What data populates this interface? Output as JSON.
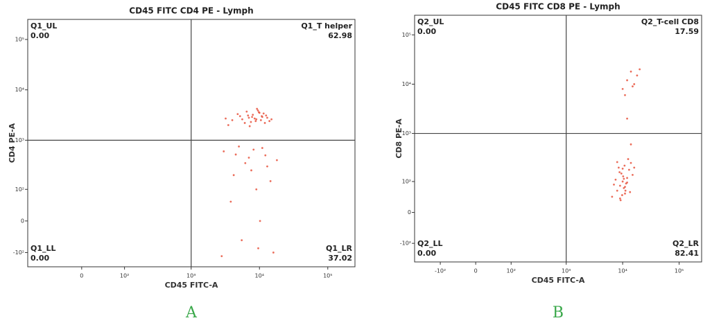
{
  "chart_data": [
    {
      "type": "scatter",
      "title": "CD45 FITC CD4 PE - Lymph",
      "caption": "A",
      "xlabel": "CD45 FITC-A",
      "ylabel": "CD4 PE-A",
      "xscale": "biexponential",
      "yscale": "biexponential",
      "xlim": [
        -150,
        250000
      ],
      "ylim": [
        -200,
        250000
      ],
      "xticks": [
        {
          "value": 0,
          "label": "0"
        },
        {
          "value": 100,
          "label": "10²"
        },
        {
          "value": 1000,
          "label": "10³"
        },
        {
          "value": 10000,
          "label": "10⁴"
        },
        {
          "value": 100000,
          "label": "10⁵"
        }
      ],
      "yticks": [
        {
          "value": -100,
          "label": "-10²"
        },
        {
          "value": 0,
          "label": "0"
        },
        {
          "value": 100,
          "label": "10²"
        },
        {
          "value": 1000,
          "label": "10³"
        },
        {
          "value": 10000,
          "label": "10⁴"
        },
        {
          "value": 100000,
          "label": "10⁵"
        }
      ],
      "gate": {
        "x": 1000,
        "y": 1000
      },
      "quadrants": [
        {
          "name": "Q1_UL",
          "value": "0.00"
        },
        {
          "name": "Q1_T helper",
          "value": "62.98"
        },
        {
          "name": "Q1_LL",
          "value": "0.00"
        },
        {
          "name": "Q1_LR",
          "value": "37.02"
        }
      ],
      "color": "#e8553f",
      "x": [
        4000,
        5200,
        6100,
        7000,
        8000,
        9000,
        10000,
        11000,
        12500,
        14000,
        3500,
        4800,
        6500,
        7500,
        8500,
        9500,
        10500,
        11500,
        13000,
        5600,
        6800,
        7800,
        8800,
        9800,
        10800,
        3200,
        15000,
        12000,
        9200,
        7200,
        3000,
        4200,
        5500,
        7000,
        9000,
        11000,
        13000,
        16000,
        3800,
        6200,
        8200,
        10200,
        12200,
        14500,
        2800,
        5000,
        7600,
        9600,
        18000,
        4500
      ],
      "values": [
        2500,
        3000,
        2200,
        2800,
        3200,
        2600,
        3500,
        2900,
        3100,
        2400,
        2000,
        3300,
        3700,
        2300,
        2700,
        3900,
        2500,
        3400,
        2800,
        2600,
        3100,
        2900,
        2400,
        3600,
        3000,
        2700,
        2600,
        2200,
        4200,
        1900,
        600,
        200,
        -50,
        450,
        100,
        700,
        300,
        -100,
        50,
        350,
        650,
        0,
        500,
        150,
        -120,
        750,
        250,
        -80,
        400,
        520
      ]
    },
    {
      "type": "scatter",
      "title": "CD45 FITC CD8 PE - Lymph",
      "caption": "B",
      "xlabel": "CD45 FITC-A",
      "ylabel": "CD8 PE-A",
      "xscale": "biexponential",
      "yscale": "biexponential",
      "xlim": [
        -300,
        250000
      ],
      "ylim": [
        -250,
        250000
      ],
      "xticks": [
        {
          "value": -100,
          "label": "-10²"
        },
        {
          "value": 0,
          "label": "0"
        },
        {
          "value": 100,
          "label": "10²"
        },
        {
          "value": 1000,
          "label": "10³"
        },
        {
          "value": 10000,
          "label": "10⁴"
        },
        {
          "value": 100000,
          "label": "10⁵"
        }
      ],
      "yticks": [
        {
          "value": -100,
          "label": "-10²"
        },
        {
          "value": 0,
          "label": "0"
        },
        {
          "value": 100,
          "label": "10²"
        },
        {
          "value": 1000,
          "label": "10³"
        },
        {
          "value": 10000,
          "label": "10⁴"
        },
        {
          "value": 100000,
          "label": "10⁵"
        }
      ],
      "gate": {
        "x": 1000,
        "y": 1000
      },
      "quadrants": [
        {
          "name": "Q2_UL",
          "value": "0.00"
        },
        {
          "name": "Q2_T-cell CD8",
          "value": "17.59"
        },
        {
          "name": "Q2_LL",
          "value": "0.00"
        },
        {
          "name": "Q2_LR",
          "value": "82.41"
        }
      ],
      "color": "#e8553f",
      "x": [
        8000,
        9000,
        10000,
        11000,
        12000,
        9500,
        10500,
        11500,
        8500,
        7500,
        13000,
        14000,
        6500,
        9200,
        10200,
        11200,
        12500,
        8800,
        9800,
        10800,
        7000,
        15000,
        16000,
        9000,
        10000,
        11000,
        12000,
        8000,
        13500,
        10500,
        10000,
        12000,
        15000,
        18000,
        11000,
        14000,
        20000,
        16000,
        12000,
        14000
      ],
      "values": [
        60,
        80,
        100,
        50,
        120,
        150,
        70,
        90,
        200,
        110,
        180,
        250,
        40,
        30,
        130,
        60,
        300,
        160,
        45,
        220,
        85,
        140,
        200,
        35,
        190,
        75,
        95,
        260,
        55,
        115,
        8000,
        12000,
        9000,
        15000,
        6000,
        18000,
        20000,
        10000,
        2000,
        600
      ]
    }
  ]
}
